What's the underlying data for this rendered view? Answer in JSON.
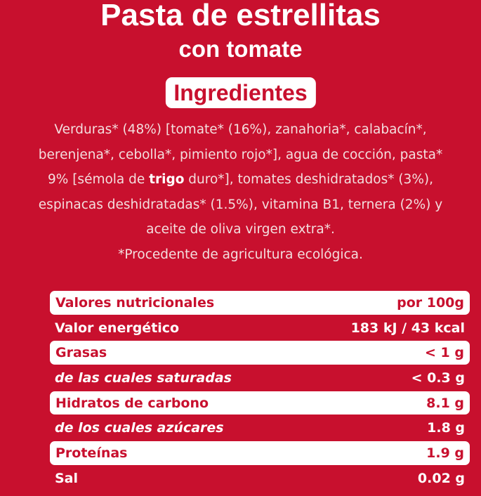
{
  "product": {
    "title_line1": "Pasta de estrellitas",
    "title_line2": "con tomate"
  },
  "ingredients": {
    "heading": "Ingredientes",
    "text_before_bold": "Verduras* (48%) [tomate* (16%), zanahoria*, calabacín*, berenjena*, cebolla*, pimiento rojo*], agua de cocción, pasta* 9% [sémola de ",
    "bold_word": "trigo",
    "text_after_bold": " duro*], tomates deshidratados* (3%), espinacas deshidratadas* (1.5%), vitamina B1, ternera (2%) y aceite de oliva virgen extra*.",
    "footnote": "*Procedente de agricultura ecológica."
  },
  "nutrition": {
    "rows": [
      {
        "label": "Valores nutricionales",
        "value": "por 100g"
      },
      {
        "label": "Valor energético",
        "value": "183 kJ / 43 kcal"
      },
      {
        "label": "Grasas",
        "value": "< 1 g"
      },
      {
        "label": "de las cuales saturadas",
        "value": "< 0.3 g"
      },
      {
        "label": "Hidratos de carbono",
        "value": "8.1 g"
      },
      {
        "label": "de los cuales azúcares",
        "value": "1.8 g"
      },
      {
        "label": "Proteínas",
        "value": "1.9 g"
      },
      {
        "label": "Sal",
        "value": "0.02 g"
      }
    ]
  },
  "colors": {
    "background": "#c8102e",
    "text": "#ffffff"
  }
}
